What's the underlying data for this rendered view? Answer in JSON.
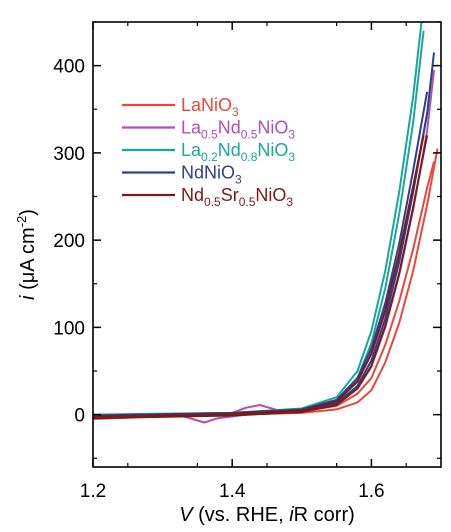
{
  "chart_data": {
    "type": "line",
    "xlabel_parts": {
      "v": "V",
      "mid": " (vs. RHE, ",
      "i": "i",
      "end": "R corr)"
    },
    "ylabel_parts": {
      "i": "i",
      "unit": " (μA cm",
      "exp": "-2",
      "close": ")"
    },
    "xlim": [
      1.2,
      1.7
    ],
    "ylim": [
      -60,
      450
    ],
    "xticks": [
      1.2,
      1.4,
      1.6
    ],
    "yticks": [
      0,
      100,
      200,
      300,
      400
    ],
    "xtick_labels": [
      "1.2",
      "1.4",
      "1.6"
    ],
    "ytick_labels": [
      "0",
      "100",
      "200",
      "300",
      "400"
    ],
    "legend_position": "upper-left",
    "series": [
      {
        "label_parts": [
          {
            "t": "LaNiO"
          },
          {
            "t": "3",
            "sub": true
          }
        ],
        "color": "#e8473f",
        "forward": [
          [
            1.2,
            -5
          ],
          [
            1.3,
            -2
          ],
          [
            1.4,
            0
          ],
          [
            1.5,
            2
          ],
          [
            1.55,
            6
          ],
          [
            1.58,
            14
          ],
          [
            1.6,
            28
          ],
          [
            1.62,
            60
          ],
          [
            1.64,
            105
          ],
          [
            1.66,
            165
          ],
          [
            1.68,
            240
          ],
          [
            1.695,
            305
          ]
        ],
        "reverse": [
          [
            1.2,
            -3
          ],
          [
            1.3,
            -1
          ],
          [
            1.4,
            1
          ],
          [
            1.5,
            4
          ],
          [
            1.55,
            10
          ],
          [
            1.58,
            24
          ],
          [
            1.6,
            42
          ],
          [
            1.62,
            80
          ],
          [
            1.64,
            130
          ],
          [
            1.66,
            190
          ],
          [
            1.68,
            260
          ],
          [
            1.69,
            290
          ]
        ]
      },
      {
        "label_parts": [
          {
            "t": "La"
          },
          {
            "t": "0.5",
            "sub": true
          },
          {
            "t": "Nd"
          },
          {
            "t": "0.5",
            "sub": true
          },
          {
            "t": "NiO"
          },
          {
            "t": "3",
            "sub": true
          }
        ],
        "color": "#b24fb0",
        "forward": [
          [
            1.2,
            -3
          ],
          [
            1.33,
            -2
          ],
          [
            1.36,
            -9
          ],
          [
            1.38,
            -4
          ],
          [
            1.42,
            0
          ],
          [
            1.5,
            4
          ],
          [
            1.55,
            12
          ],
          [
            1.58,
            30
          ],
          [
            1.6,
            55
          ],
          [
            1.62,
            100
          ],
          [
            1.64,
            160
          ],
          [
            1.66,
            235
          ],
          [
            1.68,
            325
          ],
          [
            1.69,
            395
          ]
        ],
        "reverse": [
          [
            1.2,
            -1
          ],
          [
            1.4,
            2
          ],
          [
            1.42,
            8
          ],
          [
            1.44,
            11
          ],
          [
            1.47,
            4
          ],
          [
            1.5,
            6
          ],
          [
            1.55,
            16
          ],
          [
            1.58,
            38
          ],
          [
            1.6,
            70
          ],
          [
            1.62,
            118
          ],
          [
            1.64,
            182
          ],
          [
            1.66,
            260
          ],
          [
            1.68,
            345
          ]
        ]
      },
      {
        "label_parts": [
          {
            "t": "La"
          },
          {
            "t": "0.2",
            "sub": true
          },
          {
            "t": "Nd"
          },
          {
            "t": "0.8",
            "sub": true
          },
          {
            "t": "NiO"
          },
          {
            "t": "3",
            "sub": true
          }
        ],
        "color": "#18a89a",
        "forward": [
          [
            1.2,
            -2
          ],
          [
            1.4,
            0
          ],
          [
            1.5,
            5
          ],
          [
            1.55,
            16
          ],
          [
            1.58,
            42
          ],
          [
            1.6,
            82
          ],
          [
            1.62,
            145
          ],
          [
            1.64,
            230
          ],
          [
            1.66,
            335
          ],
          [
            1.675,
            440
          ]
        ],
        "reverse": [
          [
            1.2,
            0
          ],
          [
            1.4,
            2
          ],
          [
            1.5,
            7
          ],
          [
            1.55,
            20
          ],
          [
            1.58,
            50
          ],
          [
            1.6,
            96
          ],
          [
            1.62,
            165
          ],
          [
            1.64,
            255
          ],
          [
            1.66,
            365
          ],
          [
            1.672,
            450
          ]
        ]
      },
      {
        "label_parts": [
          {
            "t": "NdNiO"
          },
          {
            "t": "3",
            "sub": true
          }
        ],
        "color": "#2e3f8f",
        "forward": [
          [
            1.2,
            -3
          ],
          [
            1.4,
            0
          ],
          [
            1.5,
            4
          ],
          [
            1.55,
            13
          ],
          [
            1.58,
            33
          ],
          [
            1.6,
            62
          ],
          [
            1.62,
            110
          ],
          [
            1.64,
            175
          ],
          [
            1.66,
            255
          ],
          [
            1.68,
            345
          ],
          [
            1.69,
            415
          ]
        ],
        "reverse": [
          [
            1.2,
            -1
          ],
          [
            1.4,
            2
          ],
          [
            1.5,
            6
          ],
          [
            1.55,
            17
          ],
          [
            1.58,
            42
          ],
          [
            1.6,
            76
          ],
          [
            1.62,
            128
          ],
          [
            1.64,
            196
          ],
          [
            1.66,
            280
          ],
          [
            1.68,
            370
          ]
        ]
      },
      {
        "label_parts": [
          {
            "t": "Nd"
          },
          {
            "t": "0.5",
            "sub": true
          },
          {
            "t": "Sr"
          },
          {
            "t": "0.5",
            "sub": true
          },
          {
            "t": "NiO"
          },
          {
            "t": "3",
            "sub": true
          }
        ],
        "color": "#7a1a1a",
        "forward": [
          [
            1.2,
            -4
          ],
          [
            1.4,
            -1
          ],
          [
            1.5,
            3
          ],
          [
            1.55,
            11
          ],
          [
            1.58,
            30
          ],
          [
            1.6,
            56
          ],
          [
            1.62,
            102
          ],
          [
            1.64,
            162
          ],
          [
            1.66,
            238
          ],
          [
            1.68,
            320
          ]
        ],
        "reverse": [
          [
            1.2,
            -2
          ],
          [
            1.4,
            1
          ],
          [
            1.5,
            5
          ],
          [
            1.55,
            15
          ],
          [
            1.58,
            38
          ],
          [
            1.6,
            70
          ],
          [
            1.62,
            120
          ],
          [
            1.64,
            185
          ],
          [
            1.66,
            262
          ],
          [
            1.675,
            320
          ]
        ]
      }
    ]
  }
}
